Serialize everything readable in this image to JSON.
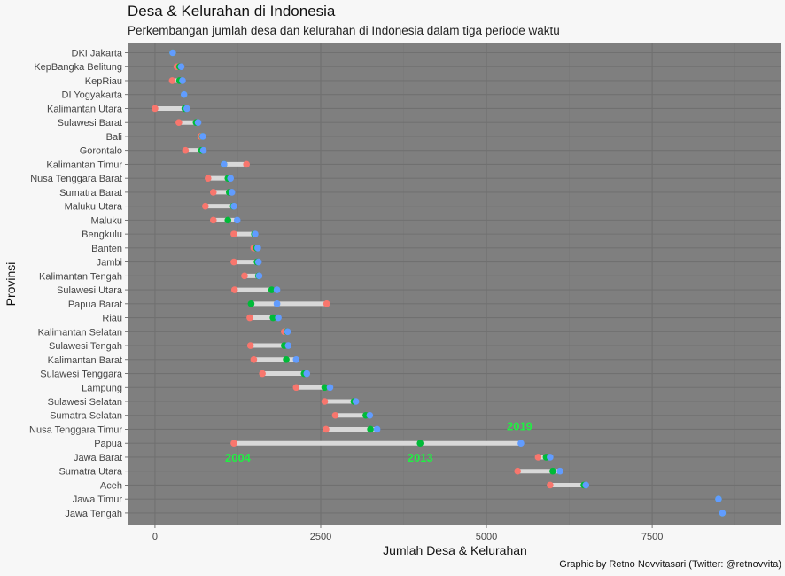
{
  "title": "Desa & Kelurahan di Indonesia",
  "subtitle": "Perkembangan jumlah desa dan kelurahan di Indonesia dalam tiga periode waktu",
  "caption": "Graphic by Retno Novvitasari (Twitter: @retnovvita)",
  "colors": {
    "panel": "#7f7f7f",
    "grid_major": "#707070",
    "grid_minor": "#787878",
    "segment": "#d9d9d9",
    "y2004": "#f8766d",
    "y2013": "#00ba38",
    "y2019": "#619cff",
    "annotation": "#22ee44"
  },
  "chart_data": {
    "type": "dumbbell",
    "xlabel": "Jumlah Desa & Kelurahan",
    "ylabel": "Provinsi",
    "xlim": [
      -400,
      9450
    ],
    "xticks": [
      0,
      2500,
      5000,
      7500
    ],
    "xtick_labels": [
      "0",
      "2500",
      "5000",
      "7500"
    ],
    "grid": true,
    "legend": "none",
    "annotations": [
      {
        "text": "2004",
        "x": 1250,
        "row": "Jawa Barat"
      },
      {
        "text": "2013",
        "x": 4000,
        "row": "Jawa Barat"
      },
      {
        "text": "2019",
        "x": 5500,
        "row": "Nusa Tenggara Timur"
      }
    ],
    "rows": [
      {
        "province": "DKI Jakarta",
        "v2004": 267,
        "v2013": 267,
        "v2019": 267
      },
      {
        "province": "KepBangka Belitung",
        "v2004": 330,
        "v2013": 370,
        "v2019": 395
      },
      {
        "province": "KepRiau",
        "v2004": 260,
        "v2013": 370,
        "v2019": 415
      },
      {
        "province": "DI Yogyakarta",
        "v2004": 438,
        "v2013": 438,
        "v2019": 438
      },
      {
        "province": "Kalimantan Utara",
        "v2004": 0,
        "v2013": 450,
        "v2019": 480
      },
      {
        "province": "Sulawesi Barat",
        "v2004": 360,
        "v2013": 620,
        "v2019": 650
      },
      {
        "province": "Bali",
        "v2004": 690,
        "v2013": 715,
        "v2019": 720
      },
      {
        "province": "Gorontalo",
        "v2004": 460,
        "v2013": 700,
        "v2019": 730
      },
      {
        "province": "Kalimantan Timur",
        "v2004": 1380,
        "v2013": 1040,
        "v2019": 1040
      },
      {
        "province": "Nusa Tenggara Barat",
        "v2004": 800,
        "v2013": 1100,
        "v2019": 1140
      },
      {
        "province": "Sumatra Barat",
        "v2004": 880,
        "v2013": 1120,
        "v2019": 1160
      },
      {
        "province": "Maluku Utara",
        "v2004": 760,
        "v2013": 1180,
        "v2019": 1190
      },
      {
        "province": "Maluku",
        "v2004": 880,
        "v2013": 1100,
        "v2019": 1240
      },
      {
        "province": "Bengkulu",
        "v2004": 1190,
        "v2013": 1500,
        "v2019": 1510
      },
      {
        "province": "Banten",
        "v2004": 1490,
        "v2013": 1530,
        "v2019": 1550
      },
      {
        "province": "Jambi",
        "v2004": 1190,
        "v2013": 1540,
        "v2019": 1560
      },
      {
        "province": "Kalimantan Tengah",
        "v2004": 1350,
        "v2013": 1560,
        "v2019": 1570
      },
      {
        "province": "Sulawesi Utara",
        "v2004": 1200,
        "v2013": 1760,
        "v2019": 1840
      },
      {
        "province": "Papua Barat",
        "v2004": 2590,
        "v2013": 1450,
        "v2019": 1840
      },
      {
        "province": "Riau",
        "v2004": 1430,
        "v2013": 1780,
        "v2019": 1860
      },
      {
        "province": "Kalimantan Selatan",
        "v2004": 1950,
        "v2013": 1990,
        "v2019": 2000
      },
      {
        "province": "Sulawesi Tengah",
        "v2004": 1440,
        "v2013": 1950,
        "v2019": 2010
      },
      {
        "province": "Kalimantan Barat",
        "v2004": 1490,
        "v2013": 1980,
        "v2019": 2130
      },
      {
        "province": "Sulawesi Tenggara",
        "v2004": 1620,
        "v2013": 2250,
        "v2019": 2290
      },
      {
        "province": "Lampung",
        "v2004": 2130,
        "v2013": 2560,
        "v2019": 2640
      },
      {
        "province": "Sulawesi Selatan",
        "v2004": 2560,
        "v2013": 3000,
        "v2019": 3030
      },
      {
        "province": "Sumatra Selatan",
        "v2004": 2720,
        "v2013": 3180,
        "v2019": 3240
      },
      {
        "province": "Nusa Tenggara Timur",
        "v2004": 2580,
        "v2013": 3250,
        "v2019": 3350
      },
      {
        "province": "Papua",
        "v2004": 1190,
        "v2013": 4000,
        "v2019": 5520
      },
      {
        "province": "Jawa Barat",
        "v2004": 5780,
        "v2013": 5900,
        "v2019": 5960
      },
      {
        "province": "Sumatra Utara",
        "v2004": 5470,
        "v2013": 6000,
        "v2019": 6110
      },
      {
        "province": "Aceh",
        "v2004": 5960,
        "v2013": 6470,
        "v2019": 6500
      },
      {
        "province": "Jawa Timur",
        "v2004": 8500,
        "v2013": 8500,
        "v2019": 8500
      },
      {
        "province": "Jawa Tengah",
        "v2004": 8560,
        "v2013": 8560,
        "v2019": 8560
      }
    ]
  }
}
